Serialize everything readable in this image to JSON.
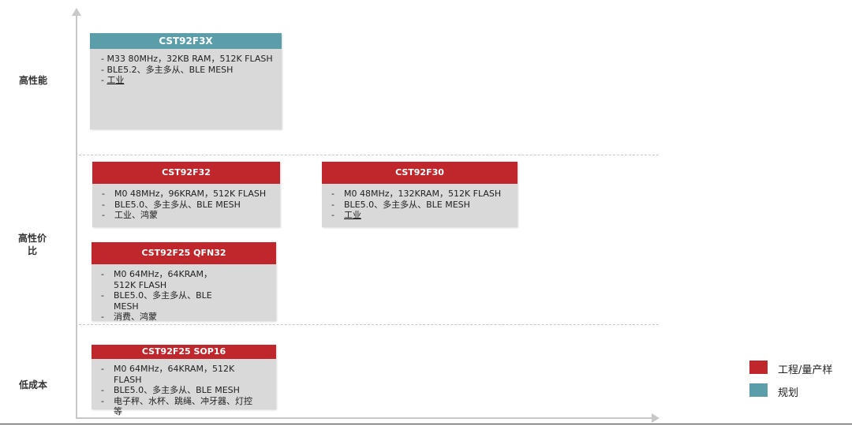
{
  "colors": {
    "mass_production": "#c0272d",
    "planning": "#5b9ea9",
    "card_body": "#d9d9d9"
  },
  "tiers": {
    "high_performance": "高性能",
    "high_value": "高性价比",
    "low_cost": "低成本"
  },
  "cards": [
    {
      "title": "CST92F3X",
      "status": "planning",
      "lines": [
        "M33 80MHz，32KB RAM，512K FLASH",
        "BLE5.2、多主多从、BLE MESH",
        "工业"
      ]
    },
    {
      "title": "CST92F32",
      "status": "mass_production",
      "lines": [
        "M0 48MHz，96KRAM，512K FLASH",
        "BLE5.0、多主多从、BLE MESH",
        "工业、鸿蒙"
      ]
    },
    {
      "title": "CST92F30",
      "status": "mass_production",
      "lines": [
        "M0 48MHz，132KRAM，512K FLASH",
        "BLE5.0、多主多从、BLE MESH",
        "工业"
      ]
    },
    {
      "title": "CST92F25 QFN32",
      "status": "mass_production",
      "lines": [
        "M0 64MHz，64KRAM，512K FLASH",
        "BLE5.0、多主多从、BLE MESH",
        "消费、鸿蒙"
      ]
    },
    {
      "title": "CST92F25 SOP16",
      "status": "mass_production",
      "lines": [
        "M0 64MHz，64KRAM，512K FLASH",
        "BLE5.0、多主多从、BLE MESH",
        "电子秤、水杯、跳绳、冲牙器、灯控等"
      ]
    }
  ],
  "legend": {
    "mass_production": "工程/量产样",
    "planning": "规划"
  }
}
